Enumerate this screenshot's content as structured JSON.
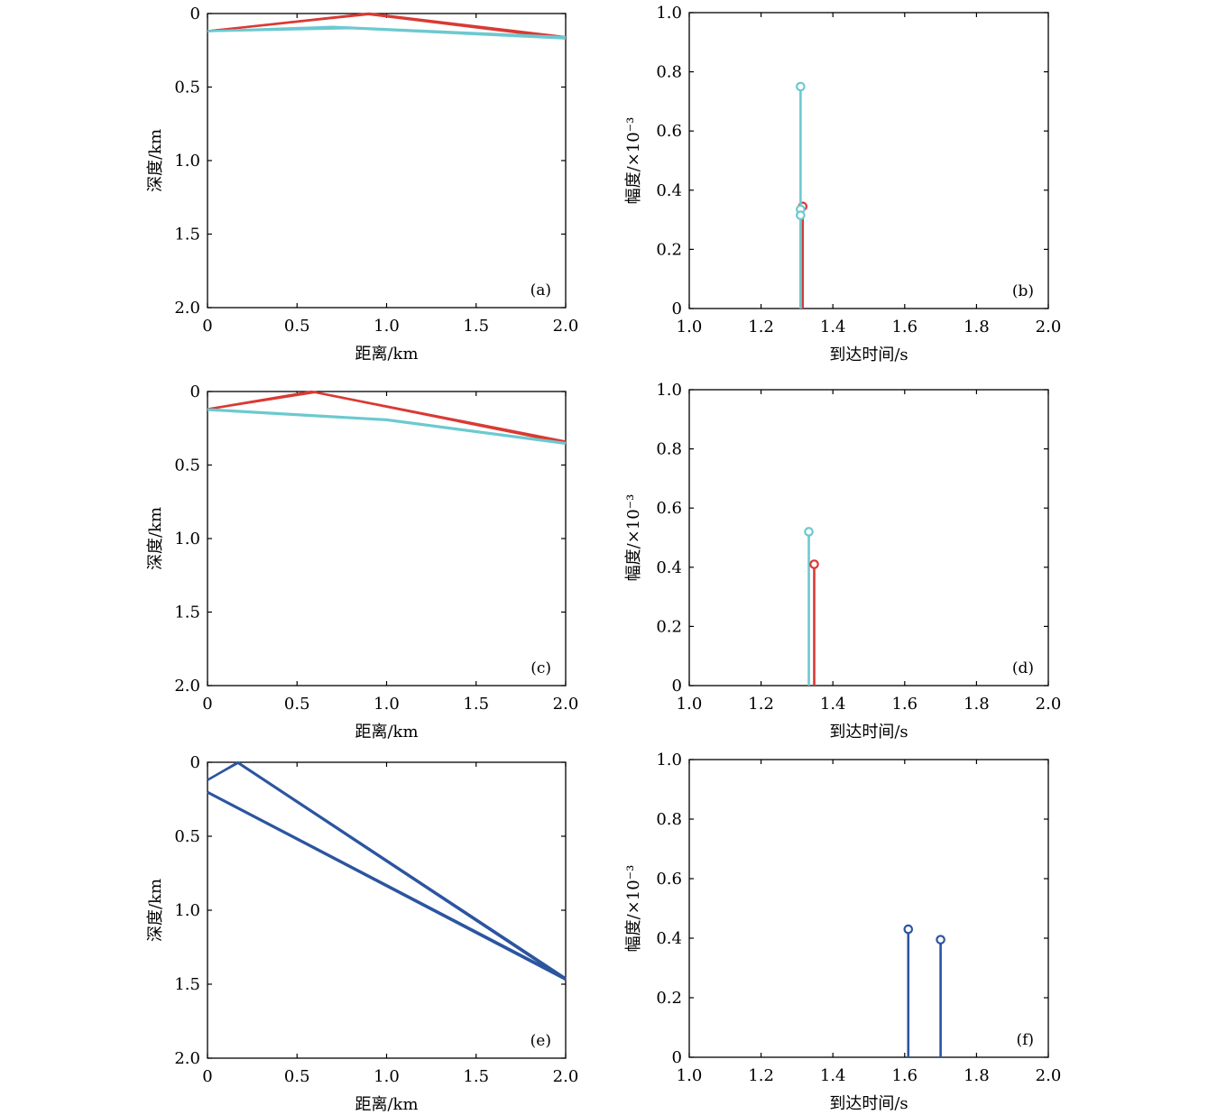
{
  "colors": {
    "red": "#d93a34",
    "cyan": "#6cc9d0",
    "blue": "#2c55a0"
  },
  "chart_data": [
    {
      "id": "a",
      "type": "line",
      "panel_label": "(a)",
      "xlabel": "距离/km",
      "ylabel": "深度/km",
      "xlim": [
        0,
        2
      ],
      "ylim": [
        2,
        0
      ],
      "y_inverted": true,
      "xticks": [
        "0",
        "0.5",
        "1.0",
        "1.5",
        "2.0"
      ],
      "yticks": [
        "0",
        "0.5",
        "1.0",
        "1.5",
        "2.0"
      ],
      "series": [
        {
          "color": "red",
          "paths": [
            {
              "x": [
                0,
                0.9,
                2.0
              ],
              "y": [
                0.12,
                0.0,
                0.16
              ]
            },
            {
              "x": [
                0,
                0.9,
                2.0
              ],
              "y": [
                0.12,
                0.005,
                0.17
              ]
            }
          ]
        },
        {
          "color": "cyan",
          "paths": [
            {
              "x": [
                0,
                0.7,
                2.0
              ],
              "y": [
                0.12,
                0.09,
                0.16
              ]
            },
            {
              "x": [
                0,
                0.8,
                2.0
              ],
              "y": [
                0.12,
                0.1,
                0.17
              ]
            }
          ]
        }
      ]
    },
    {
      "id": "b",
      "type": "stem",
      "panel_label": "(b)",
      "xlabel": "到达时间/s",
      "ylabel": "幅度/×10⁻³",
      "xlim": [
        1.0,
        2.0
      ],
      "ylim": [
        0,
        1.0
      ],
      "xticks": [
        "1.0",
        "1.2",
        "1.4",
        "1.6",
        "1.8",
        "2.0"
      ],
      "yticks": [
        "0",
        "0.2",
        "0.4",
        "0.6",
        "0.8",
        "1.0"
      ],
      "stems": [
        {
          "x": 1.316,
          "y": 0.345,
          "color": "red"
        },
        {
          "x": 1.31,
          "y": 0.75,
          "color": "cyan"
        },
        {
          "x": 1.31,
          "y": 0.335,
          "color": "cyan"
        },
        {
          "x": 1.31,
          "y": 0.315,
          "color": "cyan"
        }
      ]
    },
    {
      "id": "c",
      "type": "line",
      "panel_label": "(c)",
      "xlabel": "距离/km",
      "ylabel": "深度/km",
      "xlim": [
        0,
        2
      ],
      "ylim": [
        2,
        0
      ],
      "y_inverted": true,
      "xticks": [
        "0",
        "0.5",
        "1.0",
        "1.5",
        "2.0"
      ],
      "yticks": [
        "0",
        "0.5",
        "1.0",
        "1.5",
        "2.0"
      ],
      "series": [
        {
          "color": "red",
          "paths": [
            {
              "x": [
                0,
                0.58,
                2.0
              ],
              "y": [
                0.12,
                0.0,
                0.34
              ]
            },
            {
              "x": [
                0,
                0.6,
                2.0
              ],
              "y": [
                0.12,
                0.005,
                0.35
              ]
            }
          ]
        },
        {
          "color": "cyan",
          "paths": [
            {
              "x": [
                0,
                1.0,
                2.0
              ],
              "y": [
                0.12,
                0.19,
                0.35
              ]
            },
            {
              "x": [
                0,
                1.0,
                2.0
              ],
              "y": [
                0.125,
                0.195,
                0.355
              ]
            }
          ]
        }
      ]
    },
    {
      "id": "d",
      "type": "stem",
      "panel_label": "(d)",
      "xlabel": "到达时间/s",
      "ylabel": "幅度/×10⁻³",
      "xlim": [
        1.0,
        2.0
      ],
      "ylim": [
        0,
        1.0
      ],
      "xticks": [
        "1.0",
        "1.2",
        "1.4",
        "1.6",
        "1.8",
        "2.0"
      ],
      "yticks": [
        "0",
        "0.2",
        "0.4",
        "0.6",
        "0.8",
        "1.0"
      ],
      "stems": [
        {
          "x": 1.333,
          "y": 0.52,
          "color": "cyan"
        },
        {
          "x": 1.348,
          "y": 0.41,
          "color": "red"
        }
      ]
    },
    {
      "id": "e",
      "type": "line",
      "panel_label": "(e)",
      "xlabel": "距离/km",
      "ylabel": "深度/km",
      "xlim": [
        0,
        2
      ],
      "ylim": [
        2,
        0
      ],
      "y_inverted": true,
      "xticks": [
        "0",
        "0.5",
        "1.0",
        "1.5",
        "2.0"
      ],
      "yticks": [
        "0",
        "0.5",
        "1.0",
        "1.5",
        "2.0"
      ],
      "series": [
        {
          "color": "blue",
          "paths": [
            {
              "x": [
                0,
                0.17,
                2.0
              ],
              "y": [
                0.12,
                0.0,
                1.46
              ]
            },
            {
              "x": [
                0,
                0.17,
                2.0
              ],
              "y": [
                0.12,
                0.005,
                1.47
              ]
            },
            {
              "x": [
                0,
                2.0
              ],
              "y": [
                0.2,
                1.46
              ]
            },
            {
              "x": [
                0,
                2.0
              ],
              "y": [
                0.205,
                1.47
              ]
            }
          ]
        }
      ]
    },
    {
      "id": "f",
      "type": "stem",
      "panel_label": "(f)",
      "xlabel": "到达时间/s",
      "ylabel": "幅度/×10⁻³",
      "xlim": [
        1.0,
        2.0
      ],
      "ylim": [
        0,
        1.0
      ],
      "xticks": [
        "1.0",
        "1.2",
        "1.4",
        "1.6",
        "1.8",
        "2.0"
      ],
      "yticks": [
        "0",
        "0.2",
        "0.4",
        "0.6",
        "0.8",
        "1.0"
      ],
      "stems": [
        {
          "x": 1.61,
          "y": 0.43,
          "color": "blue"
        },
        {
          "x": 1.7,
          "y": 0.395,
          "color": "blue"
        }
      ]
    }
  ]
}
